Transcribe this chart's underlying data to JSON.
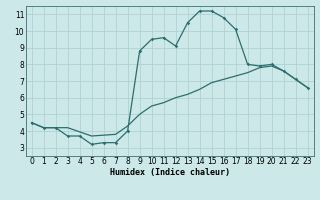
{
  "title": "",
  "xlabel": "Humidex (Indice chaleur)",
  "ylabel": "",
  "xlim": [
    -0.5,
    23.5
  ],
  "ylim": [
    2.5,
    11.5
  ],
  "yticks": [
    3,
    4,
    5,
    6,
    7,
    8,
    9,
    10,
    11
  ],
  "xticks": [
    0,
    1,
    2,
    3,
    4,
    5,
    6,
    7,
    8,
    9,
    10,
    11,
    12,
    13,
    14,
    15,
    16,
    17,
    18,
    19,
    20,
    21,
    22,
    23
  ],
  "background_color": "#cce8e8",
  "line_color": "#2d6e6e",
  "grid_color": "#aacece",
  "line1_x": [
    0,
    1,
    2,
    3,
    4,
    5,
    6,
    7,
    8,
    9,
    10,
    11,
    12,
    13,
    14,
    15,
    16,
    17,
    18,
    19,
    20,
    21,
    22,
    23
  ],
  "line1_y": [
    4.5,
    4.2,
    4.2,
    3.7,
    3.7,
    3.2,
    3.3,
    3.3,
    4.0,
    8.8,
    9.5,
    9.6,
    9.1,
    10.5,
    11.2,
    11.2,
    10.8,
    10.1,
    8.0,
    7.9,
    8.0,
    7.6,
    7.1,
    6.6
  ],
  "line2_x": [
    0,
    1,
    2,
    3,
    5,
    7,
    8,
    9,
    10,
    11,
    12,
    13,
    14,
    15,
    16,
    17,
    18,
    19,
    20,
    21,
    22,
    23
  ],
  "line2_y": [
    4.5,
    4.2,
    4.2,
    4.2,
    3.7,
    3.8,
    4.3,
    5.0,
    5.5,
    5.7,
    6.0,
    6.2,
    6.5,
    6.9,
    7.1,
    7.3,
    7.5,
    7.8,
    7.9,
    7.6,
    7.1,
    6.6
  ]
}
